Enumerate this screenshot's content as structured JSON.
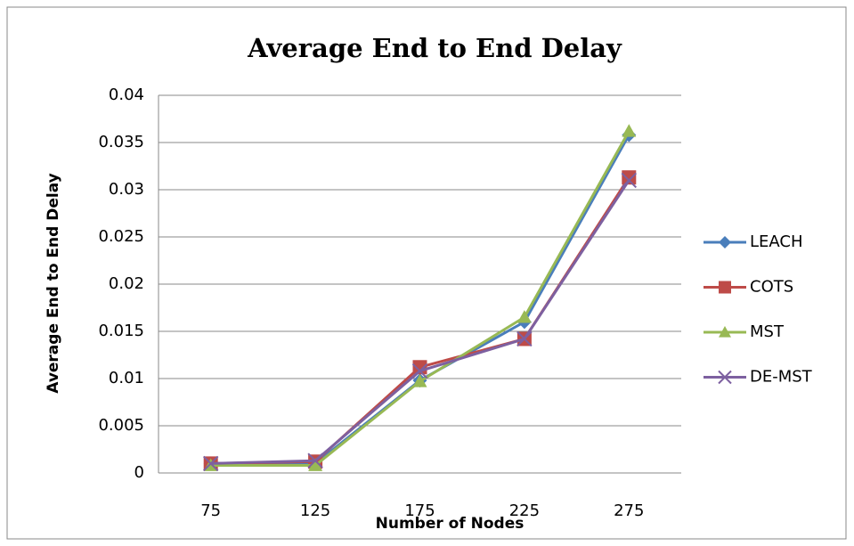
{
  "chart_data": {
    "type": "line",
    "title": "Average End to End Delay",
    "x_label": "Number of Nodes",
    "y_label": "Average End to End Delay",
    "categories": [
      "75",
      "125",
      "175",
      "225",
      "275"
    ],
    "series": [
      {
        "name": "LEACH",
        "color": "#4a7ebb",
        "marker": "diamond",
        "values": [
          0.001,
          0.001,
          0.0098,
          0.016,
          0.0358
        ]
      },
      {
        "name": "COTS",
        "color": "#be4b48",
        "marker": "square",
        "values": [
          0.001,
          0.0012,
          0.0112,
          0.0142,
          0.0313
        ]
      },
      {
        "name": "MST",
        "color": "#98b954",
        "marker": "triangle",
        "values": [
          0.0008,
          0.0008,
          0.0097,
          0.0165,
          0.0362
        ]
      },
      {
        "name": "DE-MST",
        "color": "#7d60a0",
        "marker": "x",
        "values": [
          0.001,
          0.0013,
          0.0108,
          0.0142,
          0.031
        ]
      }
    ],
    "ylim": [
      0,
      0.04
    ],
    "yticks": [
      0,
      0.005,
      0.01,
      0.015,
      0.02,
      0.025,
      0.03,
      0.035,
      0.04
    ],
    "grid": true,
    "legend": "right"
  }
}
